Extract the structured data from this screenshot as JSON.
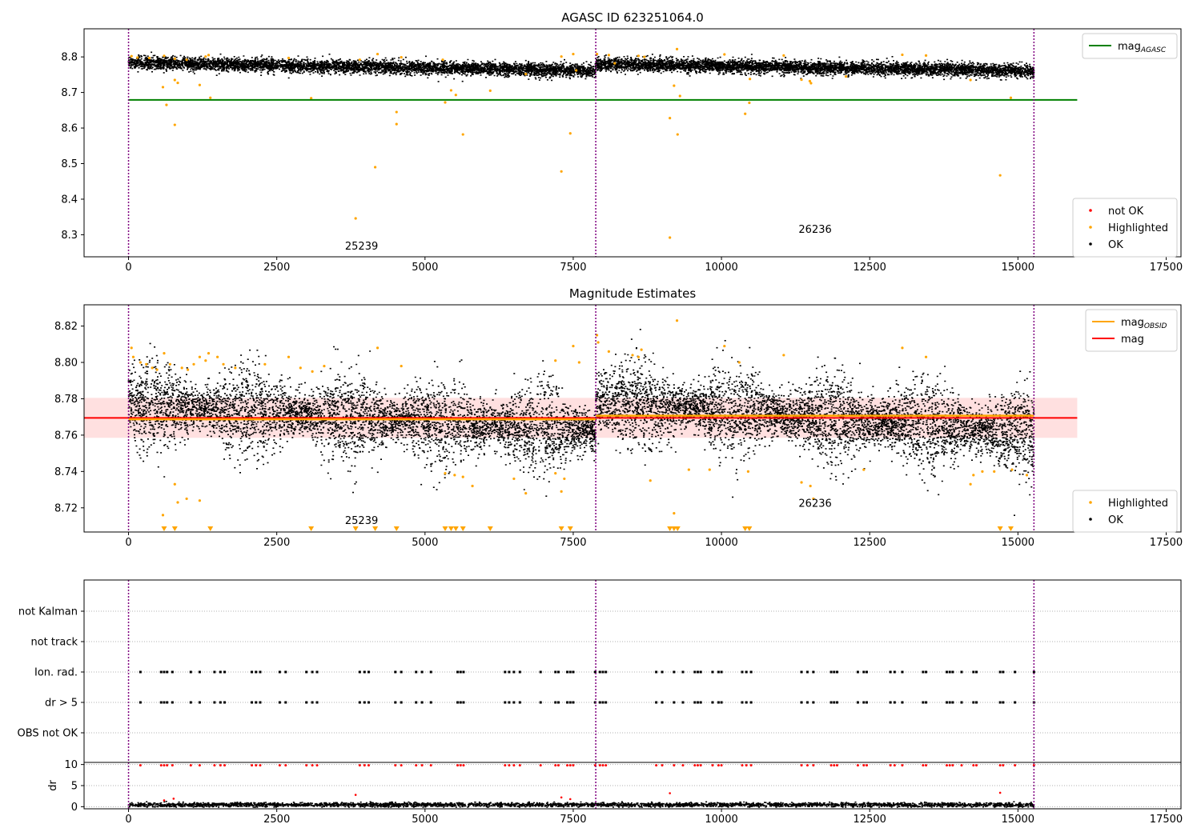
{
  "chart_data": [
    {
      "type": "scatter",
      "title": "AGASC ID 623251064.0",
      "xlabel": "",
      "ylabel": "",
      "xlim": [
        -750,
        17750
      ],
      "ylim": [
        8.238,
        8.879
      ],
      "xticks": [
        0,
        2500,
        5000,
        7500,
        10000,
        12500,
        15000,
        17500
      ],
      "yticks": [
        8.3,
        8.4,
        8.5,
        8.6,
        8.7,
        8.8
      ],
      "grid": false,
      "obs_boundaries": [
        0,
        7880,
        15270
      ],
      "obs_labels": [
        {
          "text": "25239",
          "x": 3930,
          "y": 8.258
        },
        {
          "text": "26236",
          "x": 11580,
          "y": 8.305
        }
      ],
      "reference_lines": [
        {
          "name": "mag",
          "subscript": "AGASC",
          "y": 8.679,
          "x": [
            0,
            16000
          ],
          "color": "#008000"
        }
      ],
      "ok_bands": [
        {
          "x": [
            0,
            7880
          ],
          "start": 8.785,
          "end": 8.763,
          "spread": 0.009
        },
        {
          "x": [
            7880,
            15270
          ],
          "start": 8.782,
          "end": 8.762,
          "spread": 0.009
        }
      ],
      "series": [
        {
          "name": "not OK",
          "color": "#ff0000",
          "points": []
        },
        {
          "name": "Highlighted",
          "color": "#ffa500",
          "points": [
            [
              50,
              8.802
            ],
            [
              150,
              8.798
            ],
            [
              350,
              8.797
            ],
            [
              600,
              8.803
            ],
            [
              780,
              8.795
            ],
            [
              980,
              8.792
            ],
            [
              1300,
              8.801
            ],
            [
              1350,
              8.805
            ],
            [
              2700,
              8.797
            ],
            [
              3900,
              8.792
            ],
            [
              4200,
              8.808
            ],
            [
              4600,
              8.799
            ],
            [
              5300,
              8.792
            ],
            [
              7300,
              8.801
            ],
            [
              7500,
              8.808
            ],
            [
              7900,
              8.808
            ],
            [
              8100,
              8.805
            ],
            [
              8600,
              8.803
            ],
            [
              8700,
              8.8
            ],
            [
              9250,
              8.822
            ],
            [
              10050,
              8.807
            ],
            [
              11050,
              8.804
            ],
            [
              13050,
              8.806
            ],
            [
              13450,
              8.804
            ],
            [
              580,
              8.715
            ],
            [
              640,
              8.665
            ],
            [
              780,
              8.735
            ],
            [
              830,
              8.727
            ],
            [
              1200,
              8.721
            ],
            [
              1380,
              8.685
            ],
            [
              780,
              8.609
            ],
            [
              3080,
              8.684
            ],
            [
              3830,
              8.346
            ],
            [
              4160,
              8.49
            ],
            [
              4520,
              8.645
            ],
            [
              4520,
              8.611
            ],
            [
              5340,
              8.672
            ],
            [
              5440,
              8.706
            ],
            [
              5520,
              8.693
            ],
            [
              5640,
              8.582
            ],
            [
              6100,
              8.705
            ],
            [
              7300,
              8.478
            ],
            [
              7450,
              8.585
            ],
            [
              7550,
              8.762
            ],
            [
              9130,
              8.628
            ],
            [
              9130,
              8.292
            ],
            [
              9200,
              8.719
            ],
            [
              9260,
              8.582
            ],
            [
              9300,
              8.69
            ],
            [
              10400,
              8.64
            ],
            [
              10470,
              8.671
            ],
            [
              10480,
              8.738
            ],
            [
              11350,
              8.736
            ],
            [
              11490,
              8.732
            ],
            [
              11510,
              8.726
            ],
            [
              14200,
              8.735
            ],
            [
              14700,
              8.467
            ],
            [
              14880,
              8.685
            ],
            [
              8200,
              8.782
            ],
            [
              12100,
              8.745
            ],
            [
              6700,
              8.752
            ]
          ]
        },
        {
          "name": "OK",
          "color": "#000000",
          "points": []
        }
      ],
      "legend": [
        {
          "position": "top-right",
          "entries": [
            {
              "name": "mag",
              "subscript": "AGASC",
              "kind": "line",
              "color": "#008000"
            }
          ]
        },
        {
          "position": "lower-right",
          "entries": [
            {
              "name": "not OK",
              "kind": "marker",
              "color": "#ff0000"
            },
            {
              "name": "Highlighted",
              "kind": "marker",
              "color": "#ffa500"
            },
            {
              "name": "OK",
              "kind": "marker",
              "color": "#000000"
            }
          ]
        }
      ]
    },
    {
      "type": "scatter",
      "title": "Magnitude Estimates",
      "xlabel": "",
      "ylabel": "",
      "xlim": [
        -750,
        17750
      ],
      "ylim": [
        8.7067,
        8.8317
      ],
      "xticks": [
        0,
        2500,
        5000,
        7500,
        10000,
        12500,
        15000,
        17500
      ],
      "yticks": [
        8.72,
        8.74,
        8.76,
        8.78,
        8.8,
        8.82
      ],
      "grid": false,
      "obs_boundaries": [
        0,
        7880,
        15270
      ],
      "obs_labels": [
        {
          "text": "25239",
          "x": 3930,
          "y": 8.711
        },
        {
          "text": "26236",
          "x": 11580,
          "y": 8.7205
        }
      ],
      "reference_lines": [
        {
          "name": "mag",
          "y": 8.7695,
          "x": [
            -750,
            16000
          ],
          "color": "#ff0000"
        }
      ],
      "obsid_segments": [
        {
          "name": "mag",
          "subscript": "OBSID",
          "x": [
            0,
            7880
          ],
          "y": 8.7687,
          "color": "#ffa500"
        },
        {
          "name": "mag",
          "subscript": "OBSID",
          "x": [
            7880,
            15270
          ],
          "y": 8.7707,
          "color": "#ffa500"
        }
      ],
      "band": {
        "x": [
          -750,
          16000
        ],
        "y": [
          8.7585,
          8.7805
        ],
        "color": "#ffcccc"
      },
      "ok_bands": [
        {
          "x": [
            0,
            7880
          ],
          "start": 8.777,
          "end": 8.762,
          "spread": 0.0095
        },
        {
          "x": [
            7880,
            15270
          ],
          "start": 8.779,
          "end": 8.761,
          "spread": 0.0095
        }
      ],
      "clipped_markers_x": [
        600,
        780,
        1380,
        3080,
        3830,
        4160,
        4520,
        5340,
        5440,
        5520,
        5640,
        6100,
        7300,
        7450,
        9130,
        9200,
        9260,
        10400,
        10470,
        14700,
        14880
      ],
      "series": [
        {
          "name": "Highlighted",
          "color": "#ffa500",
          "points": [
            [
              50,
              8.808
            ],
            [
              80,
              8.803
            ],
            [
              200,
              8.8
            ],
            [
              300,
              8.799
            ],
            [
              400,
              8.797
            ],
            [
              480,
              8.796
            ],
            [
              600,
              8.805
            ],
            [
              700,
              8.799
            ],
            [
              900,
              8.797
            ],
            [
              1000,
              8.796
            ],
            [
              1100,
              8.799
            ],
            [
              1200,
              8.803
            ],
            [
              1300,
              8.801
            ],
            [
              1350,
              8.805
            ],
            [
              1500,
              8.803
            ],
            [
              1600,
              8.799
            ],
            [
              1800,
              8.797
            ],
            [
              2300,
              8.799
            ],
            [
              2700,
              8.803
            ],
            [
              2900,
              8.797
            ],
            [
              3100,
              8.795
            ],
            [
              3300,
              8.798
            ],
            [
              4200,
              8.808
            ],
            [
              4600,
              8.798
            ],
            [
              7200,
              8.801
            ],
            [
              7500,
              8.809
            ],
            [
              7600,
              8.8
            ],
            [
              7900,
              8.815
            ],
            [
              7920,
              8.811
            ],
            [
              8100,
              8.806
            ],
            [
              8500,
              8.804
            ],
            [
              8600,
              8.803
            ],
            [
              8650,
              8.807
            ],
            [
              9250,
              8.823
            ],
            [
              10050,
              8.809
            ],
            [
              10300,
              8.8
            ],
            [
              11050,
              8.804
            ],
            [
              13050,
              8.808
            ],
            [
              13450,
              8.803
            ],
            [
              780,
              8.733
            ],
            [
              830,
              8.723
            ],
            [
              580,
              8.716
            ],
            [
              980,
              8.725
            ],
            [
              1200,
              8.724
            ],
            [
              5340,
              8.739
            ],
            [
              5500,
              8.738
            ],
            [
              5640,
              8.737
            ],
            [
              5800,
              8.732
            ],
            [
              6500,
              8.736
            ],
            [
              6700,
              8.728
            ],
            [
              7200,
              8.739
            ],
            [
              7300,
              8.729
            ],
            [
              7350,
              8.736
            ],
            [
              8800,
              8.735
            ],
            [
              9200,
              8.717
            ],
            [
              9450,
              8.741
            ],
            [
              9800,
              8.741
            ],
            [
              10450,
              8.74
            ],
            [
              11350,
              8.734
            ],
            [
              11500,
              8.732
            ],
            [
              11550,
              8.725
            ],
            [
              12400,
              8.741
            ],
            [
              14200,
              8.733
            ],
            [
              14250,
              8.738
            ],
            [
              14400,
              8.74
            ],
            [
              14600,
              8.74
            ],
            [
              14900,
              8.741
            ],
            [
              15150,
              8.738
            ]
          ]
        },
        {
          "name": "OK",
          "color": "#000000",
          "points": []
        }
      ],
      "legend": [
        {
          "position": "top-right",
          "entries": [
            {
              "name": "mag",
              "subscript": "OBSID",
              "kind": "line",
              "color": "#ffa500"
            },
            {
              "name": "mag",
              "kind": "line",
              "color": "#ff0000"
            }
          ]
        },
        {
          "position": "lower-right",
          "entries": [
            {
              "name": "Highlighted",
              "kind": "marker",
              "color": "#ffa500"
            },
            {
              "name": "OK",
              "kind": "marker",
              "color": "#000000"
            }
          ]
        }
      ]
    },
    {
      "type": "scatter",
      "title": "",
      "xlabel": "",
      "ylabel": "",
      "xlim": [
        -750,
        17750
      ],
      "categories": [
        "OBS not OK",
        "dr > 5",
        "Ion. rad.",
        "not track",
        "not Kalman"
      ],
      "grid": true,
      "obs_boundaries": [
        0,
        7880,
        15270
      ],
      "flag_x": [
        200,
        550,
        600,
        650,
        740,
        1050,
        1200,
        1450,
        1550,
        1620,
        2080,
        2150,
        2220,
        2550,
        2650,
        3000,
        3100,
        3180,
        3900,
        3980,
        4050,
        4500,
        4600,
        4850,
        4950,
        5100,
        5550,
        5600,
        5650,
        6350,
        6420,
        6500,
        6600,
        6950,
        7200,
        7250,
        7400,
        7450,
        7500,
        7870,
        7950,
        8000,
        8050,
        8900,
        9000,
        9200,
        9350,
        9550,
        9600,
        9650,
        9850,
        9950,
        10000,
        10350,
        10420,
        10500,
        11350,
        11450,
        11550,
        11850,
        11900,
        11950,
        12300,
        12400,
        12450,
        12850,
        12920,
        13050,
        13400,
        13450,
        13800,
        13850,
        13900,
        14050,
        14250,
        14300,
        14700,
        14750,
        14950,
        15270
      ],
      "flag_rows": [
        "dr > 5",
        "Ion. rad."
      ]
    },
    {
      "type": "scatter",
      "title": "",
      "xlabel": "",
      "ylabel": "dr",
      "xlim": [
        -750,
        17750
      ],
      "ylim": [
        -0.5,
        10.5
      ],
      "xticks": [
        0,
        2500,
        5000,
        7500,
        10000,
        12500,
        15000,
        17500
      ],
      "yticks": [
        0,
        5,
        10
      ],
      "grid": true,
      "clip_value": 10,
      "baseline": {
        "x": [
          0,
          15270
        ],
        "mean": 0.6,
        "spread": 0.5
      },
      "series": [
        {
          "name": "dr",
          "color": "#000000",
          "points": [
            [
              3830,
              2.8
            ],
            [
              9130,
              3.2
            ],
            [
              14700,
              3.3
            ],
            [
              600,
              1.5
            ],
            [
              7300,
              2.2
            ],
            [
              7450,
              1.8
            ],
            [
              760,
              1.9
            ]
          ]
        },
        {
          "name": "dr clipped",
          "color": "#ff0000",
          "points": []
        }
      ]
    }
  ]
}
